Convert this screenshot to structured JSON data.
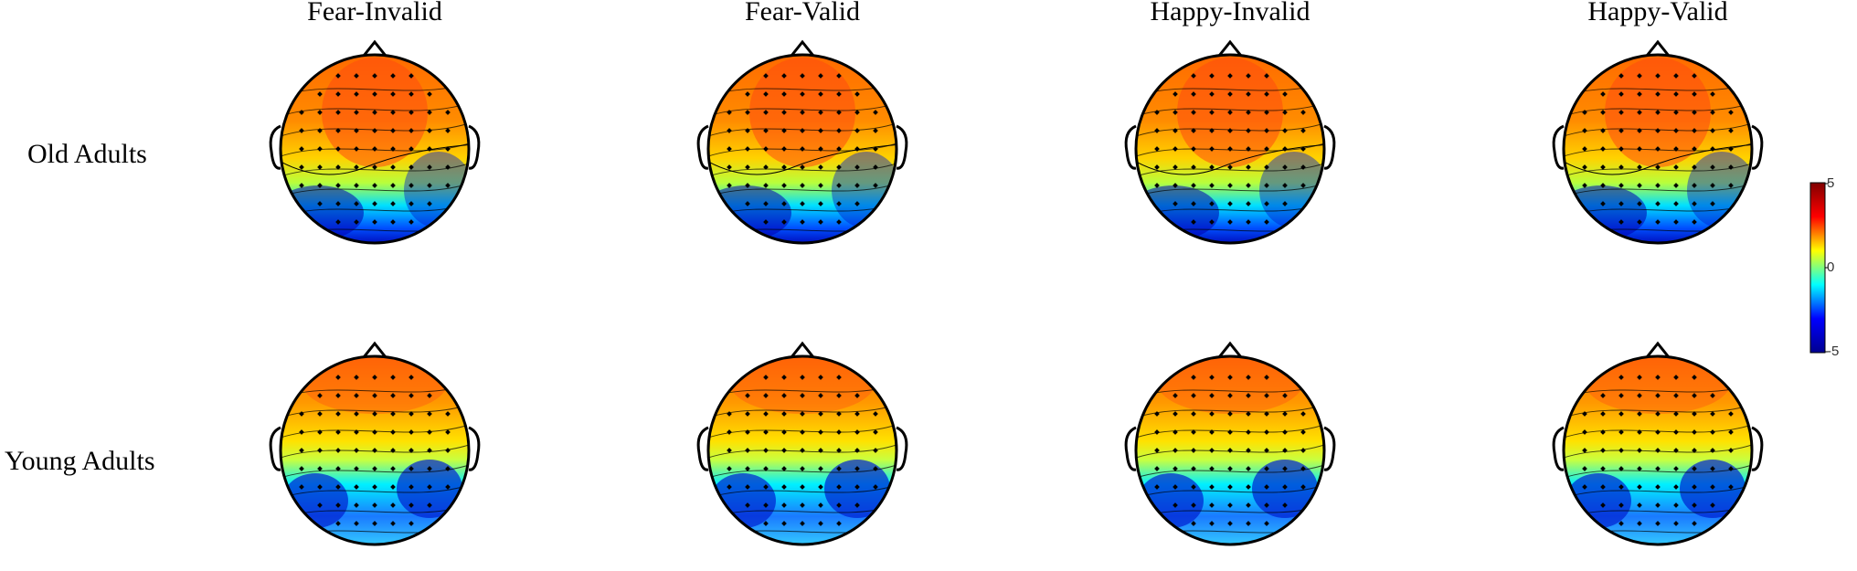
{
  "columns": [
    {
      "title": "Fear-Invalid"
    },
    {
      "title": "Fear-Valid"
    },
    {
      "title": "Happy-Invalid"
    },
    {
      "title": "Happy-Valid"
    }
  ],
  "rows": [
    {
      "label": "Old Adults"
    },
    {
      "label": "Young Adults"
    }
  ],
  "colorbar": {
    "max_label": "5",
    "mid_label": "0",
    "min_label": "-5",
    "colors": [
      "#00008f",
      "#0000ff",
      "#00ffff",
      "#ffff00",
      "#ff0000",
      "#800000"
    ]
  }
}
